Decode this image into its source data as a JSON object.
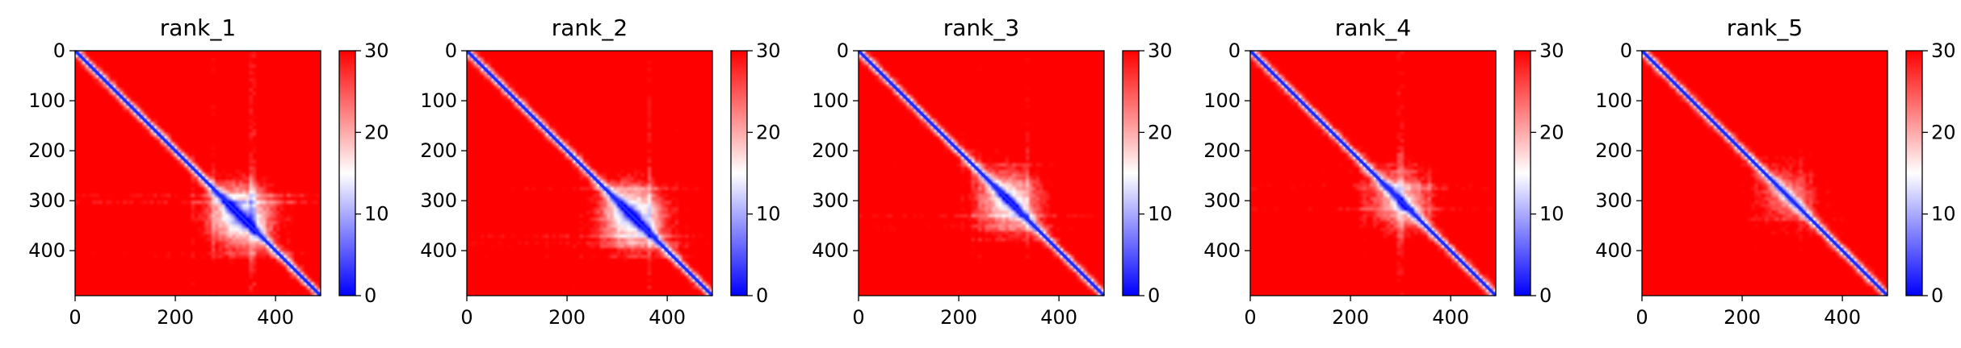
{
  "chart_data": [
    {
      "type": "heatmap",
      "title": "rank_1",
      "x_ticks": [
        0,
        200,
        400
      ],
      "y_ticks": [
        0,
        100,
        200,
        300,
        400
      ],
      "xlim": [
        0,
        490
      ],
      "ylim": [
        490,
        0
      ],
      "colorbar": {
        "ticks": [
          0,
          10,
          20,
          30
        ],
        "range": [
          0,
          30
        ],
        "colormap": "bwr",
        "low_color": "#0000ff",
        "mid_color": "#ffffff",
        "high_color": "#ff0000"
      },
      "diagonal": "low values (blue) along diagonal",
      "low_region_center": [
        330,
        330
      ],
      "low_region_strength": 1.0
    },
    {
      "type": "heatmap",
      "title": "rank_2",
      "x_ticks": [
        0,
        200,
        400
      ],
      "y_ticks": [
        0,
        100,
        200,
        300,
        400
      ],
      "xlim": [
        0,
        490
      ],
      "ylim": [
        490,
        0
      ],
      "colorbar": {
        "ticks": [
          0,
          10,
          20,
          30
        ],
        "range": [
          0,
          30
        ],
        "colormap": "bwr",
        "low_color": "#0000ff",
        "mid_color": "#ffffff",
        "high_color": "#ff0000"
      },
      "diagonal": "low values (blue) along diagonal",
      "low_region_center": [
        330,
        330
      ],
      "low_region_strength": 1.0
    },
    {
      "type": "heatmap",
      "title": "rank_3",
      "x_ticks": [
        0,
        200,
        400
      ],
      "y_ticks": [
        0,
        100,
        200,
        300,
        400
      ],
      "xlim": [
        0,
        490
      ],
      "ylim": [
        490,
        0
      ],
      "colorbar": {
        "ticks": [
          0,
          10,
          20,
          30
        ],
        "range": [
          0,
          30
        ],
        "colormap": "bwr",
        "low_color": "#0000ff",
        "mid_color": "#ffffff",
        "high_color": "#ff0000"
      },
      "diagonal": "low values (blue) along diagonal",
      "low_region_center": [
        300,
        300
      ],
      "low_region_strength": 0.8
    },
    {
      "type": "heatmap",
      "title": "rank_4",
      "x_ticks": [
        0,
        200,
        400
      ],
      "y_ticks": [
        0,
        100,
        200,
        300,
        400
      ],
      "xlim": [
        0,
        490
      ],
      "ylim": [
        490,
        0
      ],
      "colorbar": {
        "ticks": [
          0,
          10,
          20,
          30
        ],
        "range": [
          0,
          30
        ],
        "colormap": "bwr",
        "low_color": "#0000ff",
        "mid_color": "#ffffff",
        "high_color": "#ff0000"
      },
      "diagonal": "low values (blue) along diagonal",
      "low_region_center": [
        300,
        300
      ],
      "low_region_strength": 0.65
    },
    {
      "type": "heatmap",
      "title": "rank_5",
      "x_ticks": [
        0,
        200,
        400
      ],
      "y_ticks": [
        0,
        100,
        200,
        300,
        400
      ],
      "xlim": [
        0,
        490
      ],
      "ylim": [
        490,
        0
      ],
      "colorbar": {
        "ticks": [
          0,
          10,
          20,
          30
        ],
        "range": [
          0,
          30
        ],
        "colormap": "bwr",
        "low_color": "#0000ff",
        "mid_color": "#ffffff",
        "high_color": "#ff0000"
      },
      "diagonal": "low values (blue) along diagonal",
      "low_region_center": [
        290,
        290
      ],
      "low_region_strength": 0.45
    }
  ]
}
